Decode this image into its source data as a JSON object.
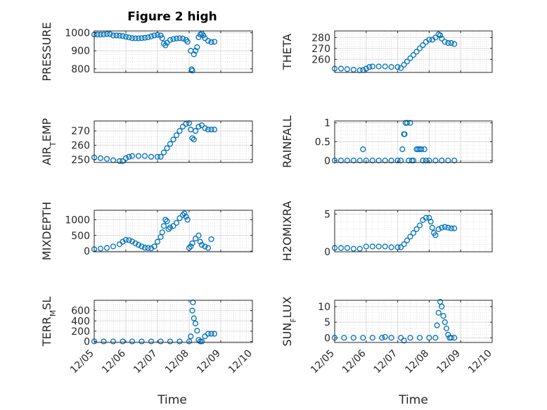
{
  "figure": {
    "title": "Figure 2 high",
    "marker_color": "#0072BD",
    "xlabel": "Time"
  },
  "chart_data": [
    {
      "type": "scatter",
      "ylabel": "PRESSURE",
      "ylim": [
        780,
        1010
      ],
      "yticks": [
        "800",
        "900",
        "1000"
      ],
      "ytick_values": [
        800,
        900,
        1000
      ],
      "xlim": [
        "12/05",
        "12/10"
      ],
      "grid": true,
      "points": [
        [
          0.0,
          990
        ],
        [
          0.1,
          990
        ],
        [
          0.2,
          990
        ],
        [
          0.3,
          991
        ],
        [
          0.4,
          993
        ],
        [
          0.5,
          992
        ],
        [
          0.6,
          985
        ],
        [
          0.7,
          985
        ],
        [
          0.8,
          984
        ],
        [
          0.9,
          982
        ],
        [
          1.0,
          978
        ],
        [
          1.1,
          974
        ],
        [
          1.2,
          970
        ],
        [
          1.3,
          969
        ],
        [
          1.4,
          969
        ],
        [
          1.5,
          970
        ],
        [
          1.6,
          972
        ],
        [
          1.7,
          975
        ],
        [
          1.8,
          980
        ],
        [
          1.9,
          985
        ],
        [
          2.0,
          988
        ],
        [
          2.1,
          985
        ],
        [
          2.15,
          970
        ],
        [
          2.2,
          940
        ],
        [
          2.25,
          930
        ],
        [
          2.3,
          945
        ],
        [
          2.4,
          960
        ],
        [
          2.5,
          965
        ],
        [
          2.6,
          968
        ],
        [
          2.7,
          970
        ],
        [
          2.8,
          968
        ],
        [
          2.9,
          960
        ],
        [
          2.95,
          950
        ],
        [
          3.05,
          900
        ],
        [
          3.08,
          798
        ],
        [
          3.1,
          790
        ],
        [
          3.15,
          880
        ],
        [
          3.2,
          900
        ],
        [
          3.25,
          920
        ],
        [
          3.3,
          975
        ],
        [
          3.35,
          990
        ],
        [
          3.4,
          995
        ],
        [
          3.45,
          985
        ],
        [
          3.5,
          970
        ],
        [
          3.6,
          955
        ],
        [
          3.7,
          948
        ],
        [
          3.8,
          950
        ]
      ]
    },
    {
      "type": "scatter",
      "ylabel": "THETA",
      "ylim": [
        248,
        286
      ],
      "yticks": [
        "260",
        "270",
        "280"
      ],
      "ytick_values": [
        260,
        270,
        280
      ],
      "xlim": [
        "12/05",
        "12/10"
      ],
      "grid": true,
      "points": [
        [
          0.0,
          251.5
        ],
        [
          0.2,
          251.5
        ],
        [
          0.4,
          251
        ],
        [
          0.6,
          250.5
        ],
        [
          0.8,
          250
        ],
        [
          0.9,
          250.2
        ],
        [
          1.0,
          251.5
        ],
        [
          1.1,
          253
        ],
        [
          1.2,
          253.5
        ],
        [
          1.4,
          253.5
        ],
        [
          1.6,
          253.5
        ],
        [
          1.8,
          253
        ],
        [
          2.0,
          253
        ],
        [
          2.1,
          252
        ],
        [
          2.2,
          255
        ],
        [
          2.3,
          258
        ],
        [
          2.4,
          261
        ],
        [
          2.5,
          264
        ],
        [
          2.6,
          267
        ],
        [
          2.7,
          270
        ],
        [
          2.8,
          273
        ],
        [
          2.9,
          276
        ],
        [
          3.0,
          278
        ],
        [
          3.1,
          278
        ],
        [
          3.2,
          280
        ],
        [
          3.3,
          283
        ],
        [
          3.35,
          282
        ],
        [
          3.4,
          279
        ],
        [
          3.5,
          276
        ],
        [
          3.6,
          275
        ],
        [
          3.7,
          275
        ],
        [
          3.8,
          274
        ]
      ]
    },
    {
      "type": "scatter",
      "ylabel": "AIR_TEMP",
      "ylim": [
        248,
        277
      ],
      "yticks": [
        "250",
        "260",
        "270"
      ],
      "ytick_values": [
        250,
        260,
        270
      ],
      "xlim": [
        "12/05",
        "12/10"
      ],
      "grid": true,
      "points": [
        [
          0.0,
          251.5
        ],
        [
          0.2,
          251
        ],
        [
          0.4,
          250.5
        ],
        [
          0.6,
          249.5
        ],
        [
          0.8,
          249
        ],
        [
          0.9,
          249
        ],
        [
          1.0,
          251
        ],
        [
          1.1,
          252
        ],
        [
          1.2,
          252.5
        ],
        [
          1.4,
          252.5
        ],
        [
          1.6,
          252.5
        ],
        [
          1.8,
          252
        ],
        [
          2.0,
          252
        ],
        [
          2.1,
          252
        ],
        [
          2.2,
          255
        ],
        [
          2.3,
          258
        ],
        [
          2.4,
          261
        ],
        [
          2.5,
          264
        ],
        [
          2.6,
          267
        ],
        [
          2.7,
          270
        ],
        [
          2.8,
          273
        ],
        [
          2.9,
          275
        ],
        [
          3.0,
          275.5
        ],
        [
          3.05,
          271
        ],
        [
          3.1,
          265
        ],
        [
          3.15,
          264
        ],
        [
          3.2,
          270
        ],
        [
          3.3,
          273
        ],
        [
          3.4,
          274
        ],
        [
          3.5,
          272
        ],
        [
          3.6,
          271
        ],
        [
          3.7,
          271
        ],
        [
          3.8,
          271
        ]
      ]
    },
    {
      "type": "scatter",
      "ylabel": "RAINFALL",
      "ylim": [
        -0.05,
        1.05
      ],
      "yticks": [
        "0",
        "0.5",
        "1"
      ],
      "ytick_values": [
        0,
        0.5,
        1
      ],
      "xlim": [
        "12/05",
        "12/10"
      ],
      "grid": true,
      "points": [
        [
          0.0,
          0
        ],
        [
          0.2,
          0
        ],
        [
          0.4,
          0
        ],
        [
          0.6,
          0
        ],
        [
          0.8,
          0
        ],
        [
          0.9,
          0.3
        ],
        [
          1.0,
          0
        ],
        [
          1.2,
          0
        ],
        [
          1.4,
          0
        ],
        [
          1.6,
          0
        ],
        [
          1.8,
          0
        ],
        [
          2.0,
          0
        ],
        [
          2.1,
          0
        ],
        [
          2.15,
          0.3
        ],
        [
          2.2,
          0.7
        ],
        [
          2.22,
          0.7
        ],
        [
          2.25,
          1.0
        ],
        [
          2.3,
          1.0
        ],
        [
          2.35,
          0
        ],
        [
          2.4,
          1.0
        ],
        [
          2.45,
          0
        ],
        [
          2.5,
          0
        ],
        [
          2.6,
          0.3
        ],
        [
          2.65,
          0.3
        ],
        [
          2.7,
          0.3
        ],
        [
          2.75,
          0.3
        ],
        [
          2.8,
          0
        ],
        [
          2.85,
          0.3
        ],
        [
          2.9,
          0
        ],
        [
          3.0,
          0
        ],
        [
          3.2,
          0
        ],
        [
          3.4,
          0
        ],
        [
          3.6,
          0
        ],
        [
          3.8,
          0
        ]
      ]
    },
    {
      "type": "scatter",
      "ylabel": "MIXDEPTH",
      "ylim": [
        -20,
        1300
      ],
      "yticks": [
        "0",
        "500",
        "1000"
      ],
      "ytick_values": [
        0,
        500,
        1000
      ],
      "xlim": [
        "12/05",
        "12/10"
      ],
      "grid": true,
      "points": [
        [
          0.0,
          60
        ],
        [
          0.2,
          80
        ],
        [
          0.4,
          100
        ],
        [
          0.6,
          150
        ],
        [
          0.8,
          220
        ],
        [
          0.9,
          300
        ],
        [
          1.0,
          360
        ],
        [
          1.1,
          350
        ],
        [
          1.2,
          310
        ],
        [
          1.3,
          250
        ],
        [
          1.4,
          200
        ],
        [
          1.5,
          150
        ],
        [
          1.6,
          110
        ],
        [
          1.7,
          100
        ],
        [
          1.8,
          90
        ],
        [
          1.9,
          150
        ],
        [
          2.0,
          300
        ],
        [
          2.1,
          450
        ],
        [
          2.15,
          600
        ],
        [
          2.2,
          800
        ],
        [
          2.25,
          1000
        ],
        [
          2.3,
          950
        ],
        [
          2.35,
          700
        ],
        [
          2.4,
          750
        ],
        [
          2.5,
          800
        ],
        [
          2.6,
          900
        ],
        [
          2.7,
          1050
        ],
        [
          2.8,
          1150
        ],
        [
          2.85,
          1200
        ],
        [
          2.9,
          1100
        ],
        [
          2.95,
          1000
        ],
        [
          3.0,
          100
        ],
        [
          3.05,
          150
        ],
        [
          3.1,
          250
        ],
        [
          3.2,
          400
        ],
        [
          3.3,
          500
        ],
        [
          3.35,
          300
        ],
        [
          3.4,
          200
        ],
        [
          3.5,
          150
        ],
        [
          3.6,
          100
        ],
        [
          3.7,
          380
        ]
      ]
    },
    {
      "type": "scatter",
      "ylabel": "H2OMIXRA",
      "ylim": [
        0,
        5.5
      ],
      "yticks": [
        "0",
        "5"
      ],
      "ytick_values": [
        0,
        5
      ],
      "xlim": [
        "12/05",
        "12/10"
      ],
      "grid": true,
      "points": [
        [
          0.0,
          0.5
        ],
        [
          0.2,
          0.5
        ],
        [
          0.4,
          0.5
        ],
        [
          0.6,
          0.4
        ],
        [
          0.8,
          0.4
        ],
        [
          1.0,
          0.7
        ],
        [
          1.2,
          0.7
        ],
        [
          1.4,
          0.7
        ],
        [
          1.6,
          0.7
        ],
        [
          1.8,
          0.6
        ],
        [
          2.0,
          0.6
        ],
        [
          2.1,
          0.6
        ],
        [
          2.2,
          1.0
        ],
        [
          2.3,
          1.5
        ],
        [
          2.4,
          2.0
        ],
        [
          2.5,
          2.5
        ],
        [
          2.6,
          3.0
        ],
        [
          2.7,
          3.5
        ],
        [
          2.8,
          4.2
        ],
        [
          2.9,
          4.5
        ],
        [
          3.0,
          4.5
        ],
        [
          3.05,
          4.0
        ],
        [
          3.1,
          3.2
        ],
        [
          3.15,
          2.5
        ],
        [
          3.2,
          2.2
        ],
        [
          3.3,
          3.0
        ],
        [
          3.4,
          3.2
        ],
        [
          3.5,
          3.3
        ],
        [
          3.6,
          3.2
        ],
        [
          3.7,
          3.1
        ],
        [
          3.8,
          3.1
        ]
      ]
    },
    {
      "type": "scatter",
      "ylabel": "TERR_MSL",
      "ylim": [
        -20,
        800
      ],
      "yticks": [
        "0",
        "200",
        "400",
        "600"
      ],
      "ytick_values": [
        0,
        200,
        400,
        600
      ],
      "xlim": [
        "12/05",
        "12/10"
      ],
      "grid": true,
      "points": [
        [
          0.0,
          0
        ],
        [
          0.3,
          0
        ],
        [
          0.6,
          0
        ],
        [
          0.9,
          0
        ],
        [
          1.2,
          0
        ],
        [
          1.5,
          0
        ],
        [
          1.8,
          0
        ],
        [
          2.1,
          0
        ],
        [
          2.4,
          0
        ],
        [
          2.7,
          0
        ],
        [
          3.0,
          0
        ],
        [
          3.05,
          100
        ],
        [
          3.1,
          600
        ],
        [
          3.12,
          760
        ],
        [
          3.15,
          450
        ],
        [
          3.2,
          350
        ],
        [
          3.25,
          210
        ],
        [
          3.3,
          30
        ],
        [
          3.35,
          0
        ],
        [
          3.4,
          0
        ],
        [
          3.5,
          100
        ],
        [
          3.6,
          150
        ],
        [
          3.7,
          150
        ],
        [
          3.8,
          150
        ]
      ]
    },
    {
      "type": "scatter",
      "ylabel": "SUN_FLUX",
      "ylim": [
        -1.5,
        12
      ],
      "yticks": [
        "0",
        "5",
        "10"
      ],
      "ytick_values": [
        0,
        5,
        10
      ],
      "xlim": [
        "12/05",
        "12/10"
      ],
      "grid": true,
      "points": [
        [
          0.0,
          0
        ],
        [
          0.3,
          0
        ],
        [
          0.6,
          0
        ],
        [
          0.9,
          0
        ],
        [
          1.2,
          0
        ],
        [
          1.5,
          0
        ],
        [
          1.6,
          0.3
        ],
        [
          1.8,
          0
        ],
        [
          2.1,
          0
        ],
        [
          2.2,
          -0.9
        ],
        [
          2.4,
          0
        ],
        [
          2.7,
          0
        ],
        [
          3.0,
          0
        ],
        [
          3.2,
          0
        ],
        [
          3.25,
          4
        ],
        [
          3.3,
          8
        ],
        [
          3.35,
          11.5
        ],
        [
          3.4,
          10
        ],
        [
          3.45,
          7
        ],
        [
          3.5,
          5
        ],
        [
          3.55,
          3
        ],
        [
          3.6,
          1
        ],
        [
          3.65,
          0
        ],
        [
          3.7,
          0
        ],
        [
          3.8,
          0
        ]
      ]
    }
  ],
  "xticks": [
    "12/05",
    "12/06",
    "12/07",
    "12/08",
    "12/09",
    "12/10"
  ]
}
